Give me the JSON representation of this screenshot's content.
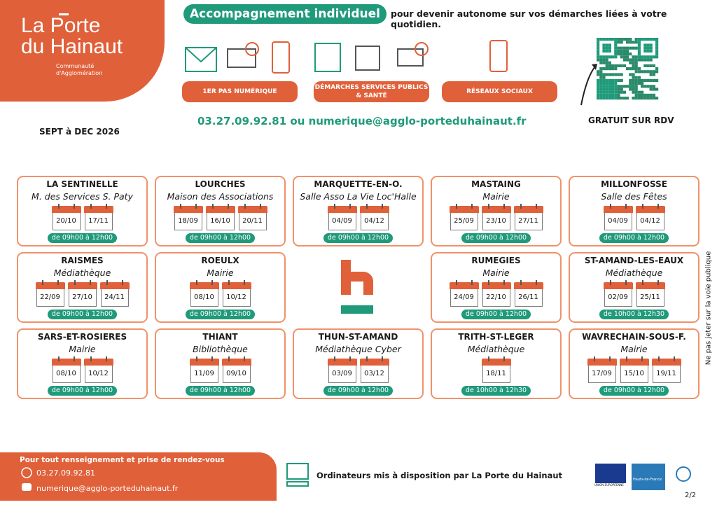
{
  "logo": {
    "line1": "La Porte",
    "line2": "du Hainaut",
    "subtitle": "Communauté d'Agglomération"
  },
  "header": {
    "badge": "Accompagnement individuel",
    "tagline": "pour devenir autonome sur vos démarches liées à votre quotidien."
  },
  "services": [
    "1ER PAS NUMÉRIQUE",
    "DÉMARCHES SERVICES PUBLICS & SANTÉ",
    "RÉSEAUX SOCIAUX"
  ],
  "contact": "03.27.09.92.81 ou numerique@agglo-porteduhainaut.fr",
  "free": "GRATUIT SUR RDV",
  "period": "SEPT à DEC 2026",
  "venues": [
    {
      "town": "LA SENTINELLE",
      "place": "M. des Services S. Paty",
      "dates": [
        "20/10",
        "17/11"
      ],
      "hours": "de 09h00 à 12h00"
    },
    {
      "town": "LOURCHES",
      "place": "Maison des Associations",
      "dates": [
        "18/09",
        "16/10",
        "20/11"
      ],
      "hours": "de 09h00 à 12h00"
    },
    {
      "town": "MARQUETTE-EN-O.",
      "place": "Salle Asso La Vie Loc'Halle",
      "dates": [
        "04/09",
        "04/12"
      ],
      "hours": "de 09h00 à 12h00"
    },
    {
      "town": "MASTAING",
      "place": "Mairie",
      "dates": [
        "25/09",
        "23/10",
        "27/11"
      ],
      "hours": "de 09h00 à 12h00"
    },
    {
      "town": "MILLONFOSSE",
      "place": "Salle des Fêtes",
      "dates": [
        "04/09",
        "04/12"
      ],
      "hours": "de 09h00 à 12h00"
    },
    {
      "town": "RAISMES",
      "place": "Médiathèque",
      "dates": [
        "22/09",
        "27/10",
        "24/11"
      ],
      "hours": "de 09h00 à 12h00"
    },
    {
      "town": "ROEULX",
      "place": "Mairie",
      "dates": [
        "08/10",
        "10/12"
      ],
      "hours": "de 09h00 à 12h00"
    },
    {
      "town": "RUMEGIES",
      "place": "Mairie",
      "dates": [
        "24/09",
        "22/10",
        "26/11"
      ],
      "hours": "de 09h00 à 12h00"
    },
    {
      "town": "ST-AMAND-LES-EAUX",
      "place": "Médiathèque",
      "dates": [
        "02/09",
        "25/11"
      ],
      "hours": "de 10h00 à 12h30"
    },
    {
      "town": "SARS-ET-ROSIERES",
      "place": "Mairie",
      "dates": [
        "08/10",
        "10/12"
      ],
      "hours": "de 09h00 à 12h00"
    },
    {
      "town": "THIANT",
      "place": "Bibliothèque",
      "dates": [
        "11/09",
        "09/10"
      ],
      "hours": "de 09h00 à 12h00"
    },
    {
      "town": "THUN-ST-AMAND",
      "place": "Médiathèque Cyber",
      "dates": [
        "03/09",
        "03/12"
      ],
      "hours": "de 09h00 à 12h00"
    },
    {
      "town": "TRITH-ST-LEGER",
      "place": "Médiathèque",
      "dates": [
        "18/11"
      ],
      "hours": "de 10h00 à 12h30"
    },
    {
      "town": "WAVRECHAIN-SOUS-F.",
      "place": "Mairie",
      "dates": [
        "17/09",
        "15/10",
        "19/11"
      ],
      "hours": "de 09h00 à 12h00"
    }
  ],
  "side_note": "Ne pas jeter sur la voie publique",
  "footer": {
    "heading": "Pour tout renseignement et prise de rendez-vous",
    "phone": "03.27.09.92.81",
    "email": "numerique@agglo-porteduhainaut.fr",
    "computers": "Ordinateurs mis à disposition par La Porte du Hainaut",
    "eu": "UNION EUROPÉENNE",
    "region": "Hauts-de-France",
    "page": "2/2"
  }
}
